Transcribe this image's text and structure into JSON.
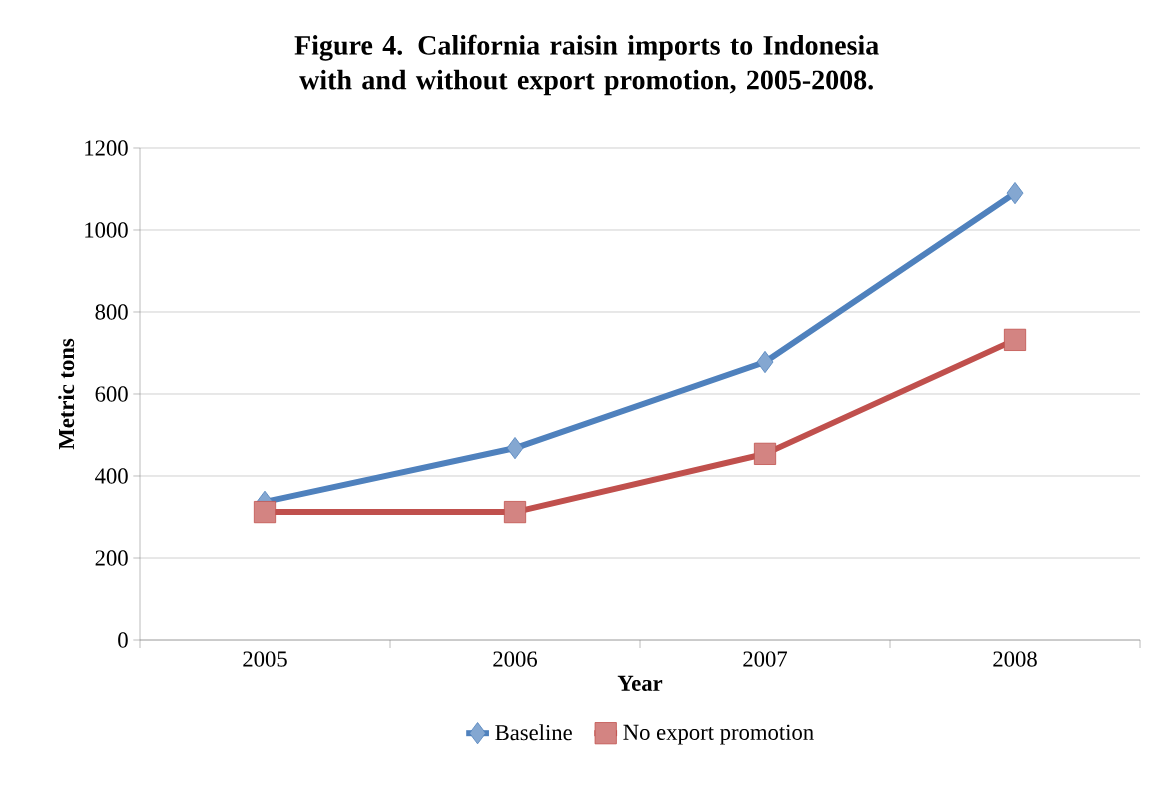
{
  "chart_data": {
    "type": "line",
    "title": "Figure 4.  California raisin imports to Indonesia with and without export promotion, 2005-2008.",
    "xlabel": "Year",
    "ylabel": "Metric tons",
    "categories": [
      "2005",
      "2006",
      "2007",
      "2008"
    ],
    "series": [
      {
        "name": "Baseline",
        "color": "#4f81bd",
        "marker": "diamond",
        "values": [
          337,
          468,
          678,
          1090
        ]
      },
      {
        "name": "No export promotion",
        "color": "#c0504d",
        "marker": "square",
        "values": [
          312,
          312,
          454,
          732
        ]
      }
    ],
    "ylim": [
      0,
      1200
    ],
    "yticks": [
      0,
      200,
      400,
      600,
      800,
      1000,
      1200
    ],
    "grid": "y",
    "legend": "bottom",
    "line_style": "solid"
  }
}
